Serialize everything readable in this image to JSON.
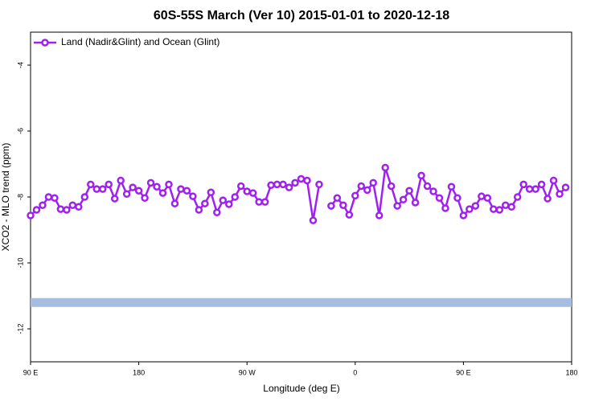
{
  "chart_data": {
    "type": "line",
    "title": "60S-55S March (Ver 10)   2015-01-01 to 2020-12-18",
    "x_label": "Longitude (deg E)",
    "y_label": "XCO2 - MLO trend (ppm)",
    "x": [
      90,
      95,
      100,
      105,
      110,
      115,
      120,
      125,
      130,
      135,
      140,
      145,
      150,
      155,
      160,
      165,
      170,
      175,
      180,
      185,
      190,
      195,
      200,
      205,
      210,
      215,
      220,
      225,
      230,
      235,
      240,
      245,
      250,
      255,
      260,
      265,
      270,
      275,
      280,
      285,
      290,
      295,
      300,
      305,
      310,
      315,
      320,
      325,
      330,
      335,
      340,
      345,
      350,
      355,
      360,
      365,
      370,
      375,
      380,
      385,
      390,
      395,
      400,
      405,
      410,
      415,
      420,
      425,
      430,
      435,
      440,
      445,
      450,
      455,
      460,
      465,
      470,
      475,
      480,
      485,
      490,
      495,
      500,
      505,
      510,
      515,
      520,
      525,
      530,
      535
    ],
    "series": [
      {
        "name": "Land (Nadir&Glint) and Ocean (Glint)",
        "color": "#a020f0",
        "values": [
          -8.56,
          -8.39,
          -8.25,
          -8.0,
          -8.03,
          -8.37,
          -8.39,
          -8.25,
          -8.3,
          -8.0,
          -7.62,
          -7.76,
          -7.76,
          -7.62,
          -8.05,
          -7.5,
          -7.91,
          -7.71,
          -7.81,
          -8.03,
          -7.57,
          -7.69,
          -7.88,
          -7.62,
          -8.2,
          -7.76,
          -7.81,
          -7.98,
          -8.39,
          -8.2,
          -7.86,
          -8.47,
          -8.1,
          -8.22,
          -8.0,
          -7.67,
          -7.83,
          -7.88,
          -8.15,
          -8.15,
          -7.64,
          -7.62,
          -7.62,
          -7.71,
          -7.57,
          -7.45,
          -7.5,
          -8.71,
          -7.62,
          null,
          -8.27,
          -8.03,
          -8.25,
          -8.54,
          -7.96,
          -7.67,
          -7.79,
          -7.57,
          -8.56,
          -7.11,
          -7.67,
          -8.27,
          -8.08,
          -7.81,
          -8.17,
          -7.35,
          -7.67,
          -7.83,
          -8.03,
          -8.34,
          -7.69,
          -8.03,
          -8.56,
          -8.37,
          -8.27,
          -7.98,
          -8.03,
          -8.37,
          -8.39,
          -8.25,
          -8.3,
          -8.0,
          -7.62,
          -7.76,
          -7.76,
          -7.62,
          -8.05,
          -7.5,
          -7.91,
          -7.71
        ]
      }
    ],
    "reference_band": {
      "value": -11.2,
      "color": "#a5bde0"
    },
    "xlim": [
      90,
      540
    ],
    "xticks": [
      {
        "value": 90,
        "label": "90 E"
      },
      180,
      {
        "value": 270,
        "label": "90 W"
      },
      {
        "value": 360,
        "label": "0"
      },
      {
        "value": 450,
        "label": "90 E"
      },
      {
        "value": 540,
        "label": "180"
      }
    ],
    "ylim": [
      -13,
      -3
    ],
    "yticks": [
      -4,
      -6,
      -8,
      -10,
      -12
    ],
    "legend": "upper left"
  }
}
